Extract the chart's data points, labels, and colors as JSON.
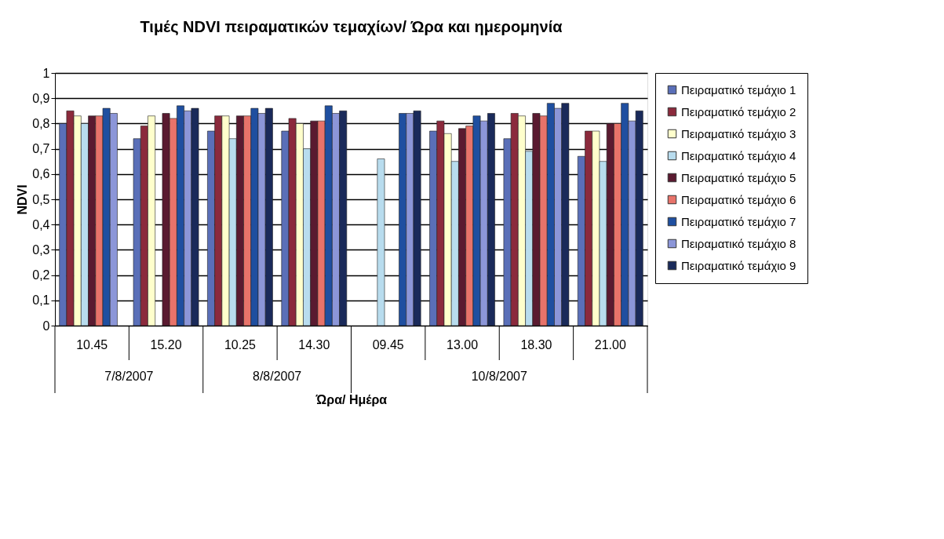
{
  "chart_data": {
    "type": "bar",
    "title": "Τιμές NDVI πειραματικών τεμαχίων/ Ώρα και ημερομηνία",
    "xlabel": "Ώρα/ Ημέρα",
    "ylabel": "NDVI",
    "categories": [
      "10.45",
      "15.20",
      "10.25",
      "14.30",
      "09.45",
      "13.00",
      "18.30",
      "21.00"
    ],
    "annotations": [
      "7/8/2007",
      "8/8/2007",
      "10/8/2007"
    ],
    "series": [
      {
        "name": "Πειραματικό τεμάχιο 1",
        "color": "#5a6fb8",
        "values": [
          0.8,
          0.74,
          0.77,
          0.77,
          null,
          0.77,
          0.74,
          0.67
        ]
      },
      {
        "name": "Πειραματικό τεμάχιο 2",
        "color": "#8b2a3c",
        "values": [
          0.85,
          0.79,
          0.83,
          0.82,
          null,
          0.81,
          0.84,
          0.77
        ]
      },
      {
        "name": "Πειραματικό τεμάχιο 3",
        "color": "#ffffcc",
        "values": [
          0.83,
          0.83,
          0.83,
          0.8,
          null,
          0.76,
          0.83,
          0.77
        ]
      },
      {
        "name": "Πειραματικό τεμάχιο 4",
        "color": "#b8dcee",
        "values": [
          0.8,
          null,
          0.74,
          0.7,
          0.66,
          0.65,
          0.69,
          0.65
        ]
      },
      {
        "name": "Πειραματικό τεμάχιο 5",
        "color": "#5a1a30",
        "values": [
          0.83,
          0.84,
          0.83,
          0.81,
          null,
          0.78,
          0.84,
          0.8
        ]
      },
      {
        "name": "Πειραματικό τεμάχιο 6",
        "color": "#e8736a",
        "values": [
          0.83,
          0.82,
          0.83,
          0.81,
          null,
          0.79,
          0.83,
          0.8
        ]
      },
      {
        "name": "Πειραματικό τεμάχιο 7",
        "color": "#1f4fa0",
        "values": [
          0.86,
          0.87,
          0.86,
          0.87,
          0.84,
          0.83,
          0.88,
          0.88
        ]
      },
      {
        "name": "Πειραματικό τεμάχιο 8",
        "color": "#8c96d8",
        "values": [
          0.84,
          0.85,
          0.84,
          0.84,
          0.84,
          0.81,
          0.86,
          0.81
        ]
      },
      {
        "name": "Πειραματικό τεμάχιο 9",
        "color": "#1a2a5a",
        "values": [
          null,
          0.86,
          0.86,
          0.85,
          0.85,
          0.84,
          0.88,
          0.85
        ]
      }
    ],
    "ylim": [
      0,
      1
    ],
    "yticks": [
      {
        "value": 0,
        "label": "0"
      },
      {
        "value": 0.1,
        "label": "0,1"
      },
      {
        "value": 0.2,
        "label": "0,2"
      },
      {
        "value": 0.3,
        "label": "0,3"
      },
      {
        "value": 0.4,
        "label": "0,4"
      },
      {
        "value": 0.5,
        "label": "0,5"
      },
      {
        "value": 0.6,
        "label": "0,6"
      },
      {
        "value": 0.7,
        "label": "0,7"
      },
      {
        "value": 0.8,
        "label": "0,8"
      },
      {
        "value": 0.9,
        "label": "0,9"
      },
      {
        "value": 1,
        "label": "1"
      }
    ],
    "grid": "y",
    "legend": "right"
  }
}
